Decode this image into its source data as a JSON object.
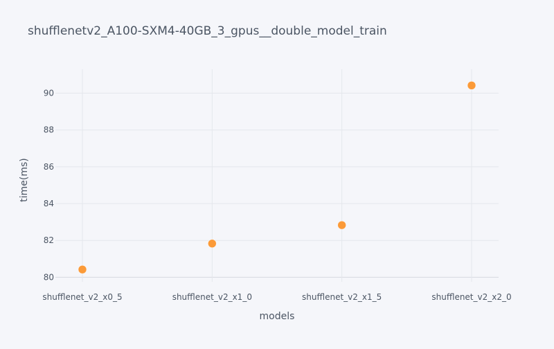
{
  "chart_data": {
    "type": "scatter",
    "title": "shufflenetv2_A100-SXM4-40GB_3_gpus__double_model_train",
    "xlabel": "models",
    "ylabel": "time(ms)",
    "categories": [
      "shufflenet_v2_x0_5",
      "shufflenet_v2_x1_0",
      "shufflenet_v2_x1_5",
      "shufflenet_v2_x2_0"
    ],
    "series": [
      {
        "values": [
          80.42,
          81.83,
          82.83,
          90.42
        ],
        "color": "#fb9a38"
      }
    ],
    "yticks": [
      80,
      82,
      84,
      86,
      88,
      90
    ],
    "ylim": [
      79.75,
      91.3
    ],
    "grid": true,
    "legend": "none"
  }
}
